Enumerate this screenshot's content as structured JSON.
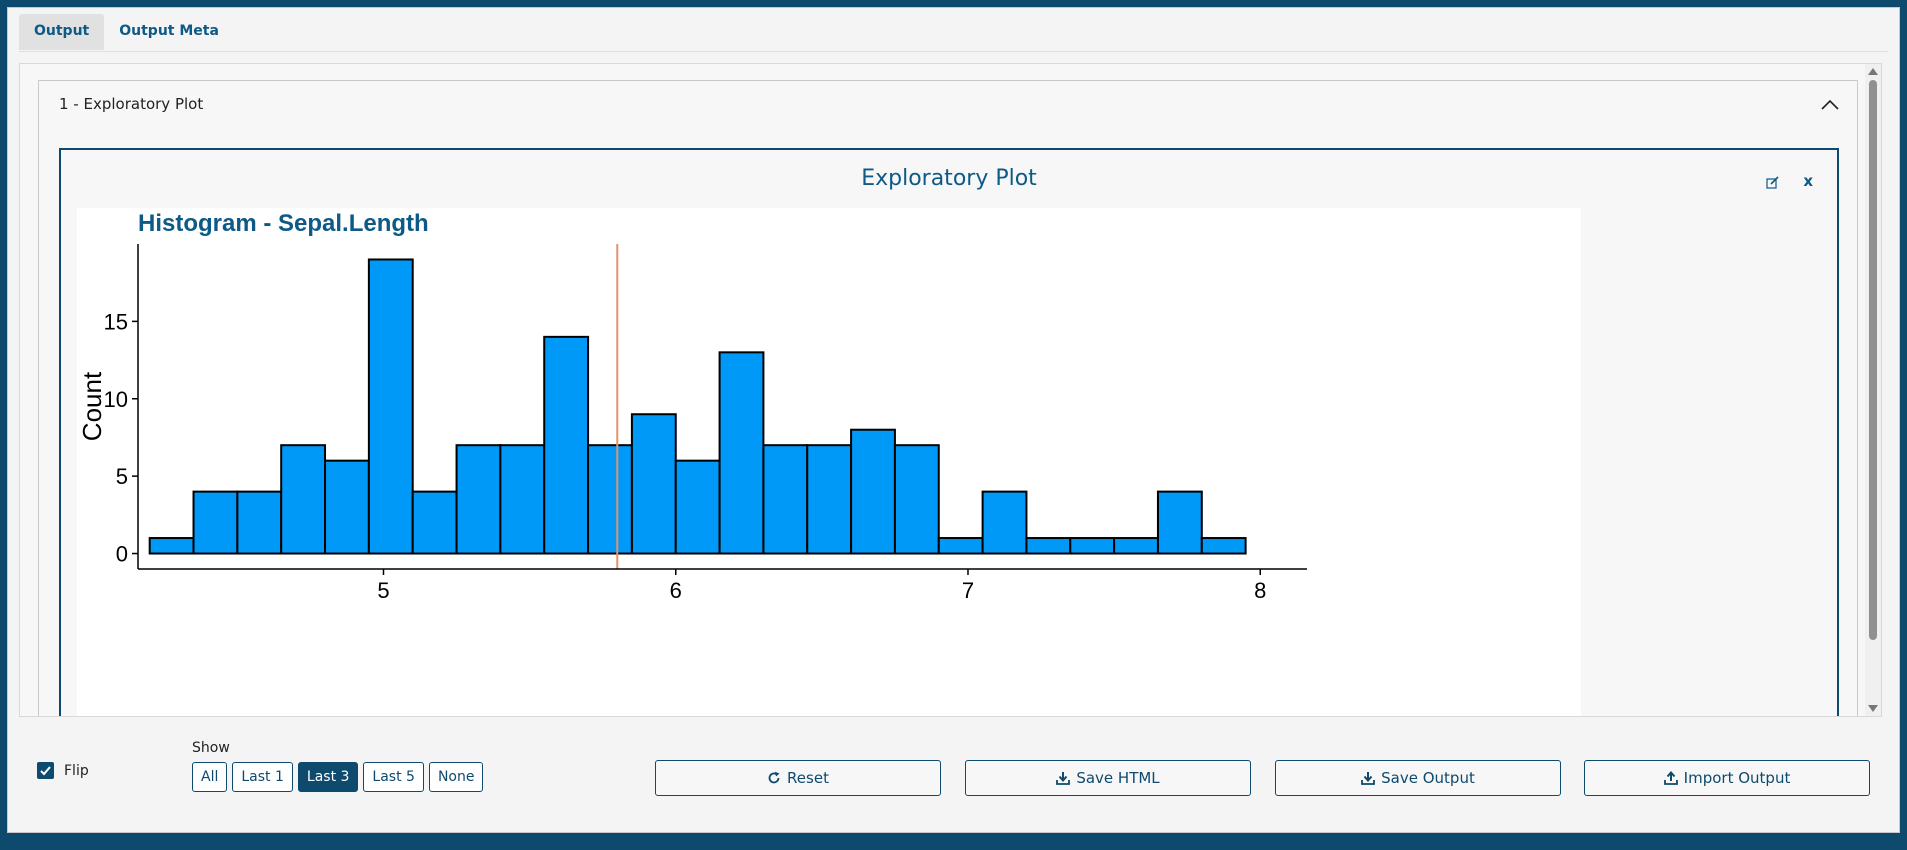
{
  "tabs": [
    {
      "label": "Output",
      "active": true
    },
    {
      "label": "Output Meta",
      "active": false
    }
  ],
  "accordion": {
    "header": "1 - Exploratory Plot"
  },
  "panel": {
    "title": "Exploratory Plot",
    "close_label": "x"
  },
  "chart_data": {
    "type": "bar",
    "title": "Histogram - Sepal.Length",
    "xlabel": "",
    "ylabel": "Count",
    "bar_color": "#0099f7",
    "bar_outline": "#000000",
    "vline_color": "#e8906a",
    "vline_x": 5.8,
    "xlim": [
      4.16,
      8.16
    ],
    "ylim": [
      -1,
      20
    ],
    "xticks": [
      5,
      6,
      7,
      8
    ],
    "yticks": [
      0,
      5,
      10,
      15
    ],
    "bins": [
      {
        "start": 4.2,
        "end": 4.35,
        "count": 1
      },
      {
        "start": 4.35,
        "end": 4.5,
        "count": 4
      },
      {
        "start": 4.5,
        "end": 4.65,
        "count": 4
      },
      {
        "start": 4.65,
        "end": 4.8,
        "count": 7
      },
      {
        "start": 4.8,
        "end": 4.95,
        "count": 6
      },
      {
        "start": 4.95,
        "end": 5.1,
        "count": 19
      },
      {
        "start": 5.1,
        "end": 5.25,
        "count": 4
      },
      {
        "start": 5.25,
        "end": 5.4,
        "count": 7
      },
      {
        "start": 5.4,
        "end": 5.55,
        "count": 7
      },
      {
        "start": 5.55,
        "end": 5.7,
        "count": 14
      },
      {
        "start": 5.7,
        "end": 5.85,
        "count": 7
      },
      {
        "start": 5.85,
        "end": 6.0,
        "count": 9
      },
      {
        "start": 6.0,
        "end": 6.15,
        "count": 6
      },
      {
        "start": 6.15,
        "end": 6.3,
        "count": 13
      },
      {
        "start": 6.3,
        "end": 6.45,
        "count": 7
      },
      {
        "start": 6.45,
        "end": 6.6,
        "count": 7
      },
      {
        "start": 6.6,
        "end": 6.75,
        "count": 8
      },
      {
        "start": 6.75,
        "end": 6.9,
        "count": 7
      },
      {
        "start": 6.9,
        "end": 7.05,
        "count": 1
      },
      {
        "start": 7.05,
        "end": 7.2,
        "count": 4
      },
      {
        "start": 7.2,
        "end": 7.35,
        "count": 1
      },
      {
        "start": 7.35,
        "end": 7.5,
        "count": 1
      },
      {
        "start": 7.5,
        "end": 7.65,
        "count": 1
      },
      {
        "start": 7.65,
        "end": 7.8,
        "count": 4
      },
      {
        "start": 7.8,
        "end": 7.95,
        "count": 1
      }
    ]
  },
  "footer": {
    "flip_label": "Flip",
    "flip_checked": true,
    "show_label": "Show",
    "show_options": [
      {
        "label": "All",
        "active": false
      },
      {
        "label": "Last 1",
        "active": false
      },
      {
        "label": "Last 3",
        "active": true
      },
      {
        "label": "Last 5",
        "active": false
      },
      {
        "label": "None",
        "active": false
      }
    ],
    "reset_label": "Reset",
    "save_html_label": "Save HTML",
    "save_output_label": "Save Output",
    "import_output_label": "Import Output"
  },
  "colors": {
    "accent": "#0d4a6e",
    "link": "#0d5a87"
  }
}
